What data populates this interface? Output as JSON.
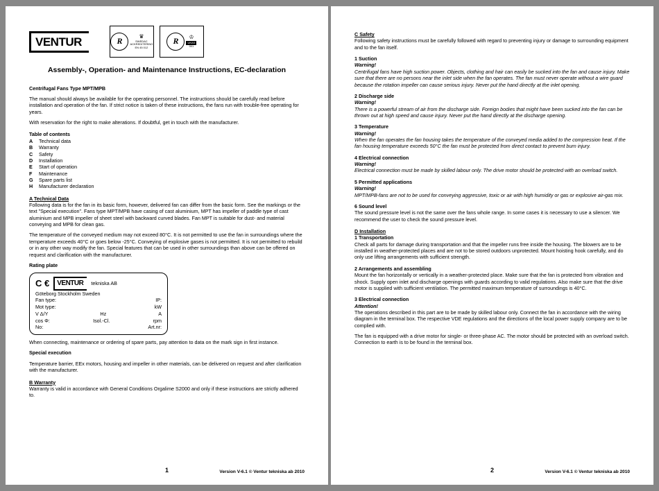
{
  "brand": "VENTUR",
  "doc_title": "Assembly-, Operation- and Maintenance Instructions, EC-declaration",
  "subtitle": "Centrifugal Fans Type MPT/MPB",
  "intro1": "The manual should always be available for the operating personnel. The instructions should be carefully read before installation and operation of the fan. If strict notice is taken of these instructions, the fans run with trouble-free operating for years.",
  "intro2": "With reservation for the right to make alterations. If doubtful, get in touch with the manufacturer.",
  "toc_label": "Table of contents",
  "toc": [
    {
      "k": "A",
      "v": "Technical data"
    },
    {
      "k": "B",
      "v": "Warranty"
    },
    {
      "k": "C",
      "v": "Safety"
    },
    {
      "k": "D",
      "v": "Installation"
    },
    {
      "k": "E",
      "v": "Start of operation"
    },
    {
      "k": "F",
      "v": "Maintenance"
    },
    {
      "k": "G",
      "v": "Spare parts list"
    },
    {
      "k": "H",
      "v": "Manufacturer declaration"
    }
  ],
  "secA_head": "A     Technical Data",
  "secA_p1": "Following data is for the fan in its basic form, however, delivered fan can differ from the basic form. See the markings or the text \"Special execution\". Fans type MPT/MPB have casing of cast aluminium, MPT has impeller of paddle type of cast aluminium and MPB impeller of sheet steel with backward curved blades. Fan MPT is suitable for dust- and material conveying and MPB for clean gas.",
  "secA_p2": "The temperature of the conveyed medium may not exceed 80°C. It is not permitted to use the fan in surroundings where the temperature exceeds 40°C or goes below -25°C. Conveying of explosive gases is not permitted. It is not permitted to rebuild or in any other way modify the fan. Special features that can be used in other surroundings than above can be offered on request and clarification with the manufacturer.",
  "rating_label": "Rating plate",
  "rp": {
    "tek": "tekniska AB",
    "loc": "Göteborg   Stockholm   Sweden",
    "l1a": "Fan type:",
    "l1b": "IP:",
    "l2a": "Mot type:",
    "l2b": "kW",
    "l3a": "V   Δ/Y",
    "l3b": "Hz",
    "l3c": "A",
    "l4a": "cos Φ:",
    "l4b": "Isol.-Cl.",
    "l4c": "rpm",
    "l5a": "No:",
    "l5b": "Art.nr:"
  },
  "rp_after": "When connecting, maintenance or ordering of spare parts, pay attention to data on the mark sign in first instance.",
  "special_head": "Special execution",
  "special_p": "Temperature barrier, EEx motors, housing and impeller in other materials, can be delivered on request and after clarification with the manufacturer.",
  "secB_head": "B     Warranty",
  "secB_p": "Warranty is valid in accordance with General Conditions Orgalime S2000 and only if these instructions are strictly adhered to.",
  "secC_head": "C     Safety",
  "secC_p": "Following safety instructions must be carefully followed with regard to preventing injury or damage to surrounding equipment and to the fan itself.",
  "s1_h": "1     Suction",
  "warn": "Warning!",
  "s1_p": "Centrifugal fans have high suction power. Objects, clothing and hair can easily be sucked into the fan and cause injury. Make sure that there are no persons near the inlet side when the fan operates. The fan must never operate without a wire guard because the rotation impeller can cause serious injury. Never put the hand directly at the inlet opening.",
  "s2_h": "2     Discharge side",
  "s2_p": "There is a powerful stream of air from the discharge side. Foreign bodies that might have been sucked into the fan can be thrown out at high speed and cause injury. Never put the hand directly at the discharge opening.",
  "s3_h": "3     Temperature",
  "s3_p": "When the fan operates the fan housing takes the temperature of the conveyed media added to the compression heat. If the fan housing temperature exceeds 50°C the fan must be protected from direct contact to prevent burn injury.",
  "s4_h": "4     Electrical connection",
  "s4_p": "Electrical connection must be made by skilled labour only. The drive motor should be protected with an overload switch.",
  "s5_h": "5     Permitted applications",
  "s5_p": "MPT/MPB-fans are not to be used for conveying aggressive, toxic or air with high humidity or gas or explosive air-gas mix.",
  "s6_h": "6     Sound level",
  "s6_p": "The sound pressure level is not the same over the fans whole range. In some cases it is necessary to use a silencer. We recommend the user to check the sound pressure level.",
  "secD_head": "D     Installation",
  "d1_h": "1     Transportation",
  "d1_p": "Check all parts for damage during transportation and that the impeller runs free inside the housing. The blowers are to be installed in weather-protected places and are not to be stored outdoors unprotected. Mount hoisting hook carefully, and do only use lifting arrangements with sufficient strength.",
  "d2_h": "2     Arrangements and assembling",
  "d2_p": "Mount the fan horizontally or vertically in a weather-protected place. Make sure that the fan is protected from vibration and shock. Supply open inlet and discharge openings with guards according to valid regulations. Also make sure that the drive motor is supplied with sufficient ventilation. The permitted maximum temperature of surroundings is 40°C.",
  "d3_h": "3     Electrical connection",
  "att": "Attention!",
  "d3_p1": "The operations described in this part are to be made by skilled labour only. Connect the fan in accordance with the wiring diagram in the terminal box. The respective VDE regulations and the directions of the local power supply company are to be complied with.",
  "d3_p2": "The fan is equipped with a drive motor for single- or three-phase AC. The motor should be protected with an overload switch. Connection to earth is to be found in the terminal box.",
  "pn1": "1",
  "pn2": "2",
  "footer": "Version V-6.1  © Ventur tekniska ab 2010"
}
